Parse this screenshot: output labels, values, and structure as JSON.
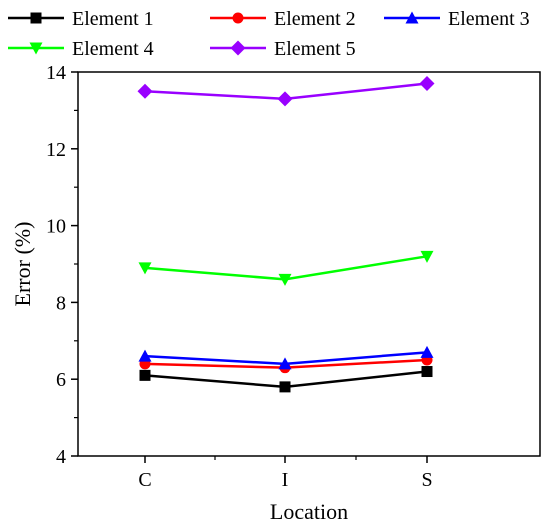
{
  "chart_data": {
    "type": "line",
    "categories": [
      "C",
      "I",
      "S"
    ],
    "series": [
      {
        "name": "Element 1",
        "values": [
          6.1,
          5.8,
          6.2
        ],
        "color": "#000000",
        "marker": "square"
      },
      {
        "name": "Element 2",
        "values": [
          6.4,
          6.3,
          6.5
        ],
        "color": "#ff0000",
        "marker": "circle"
      },
      {
        "name": "Element 3",
        "values": [
          6.6,
          6.4,
          6.7
        ],
        "color": "#0000ff",
        "marker": "triangle-up"
      },
      {
        "name": "Element 4",
        "values": [
          8.9,
          8.6,
          9.2
        ],
        "color": "#00ff00",
        "marker": "triangle-down"
      },
      {
        "name": "Element 5",
        "values": [
          13.5,
          13.3,
          13.7
        ],
        "color": "#9900ff",
        "marker": "diamond"
      }
    ],
    "xlabel": "Location",
    "ylabel": "Error (%)",
    "ylim": [
      4,
      14
    ],
    "yticks": [
      "4",
      "6",
      "8",
      "10",
      "12",
      "14"
    ],
    "grid": false,
    "legend_position": "top"
  }
}
